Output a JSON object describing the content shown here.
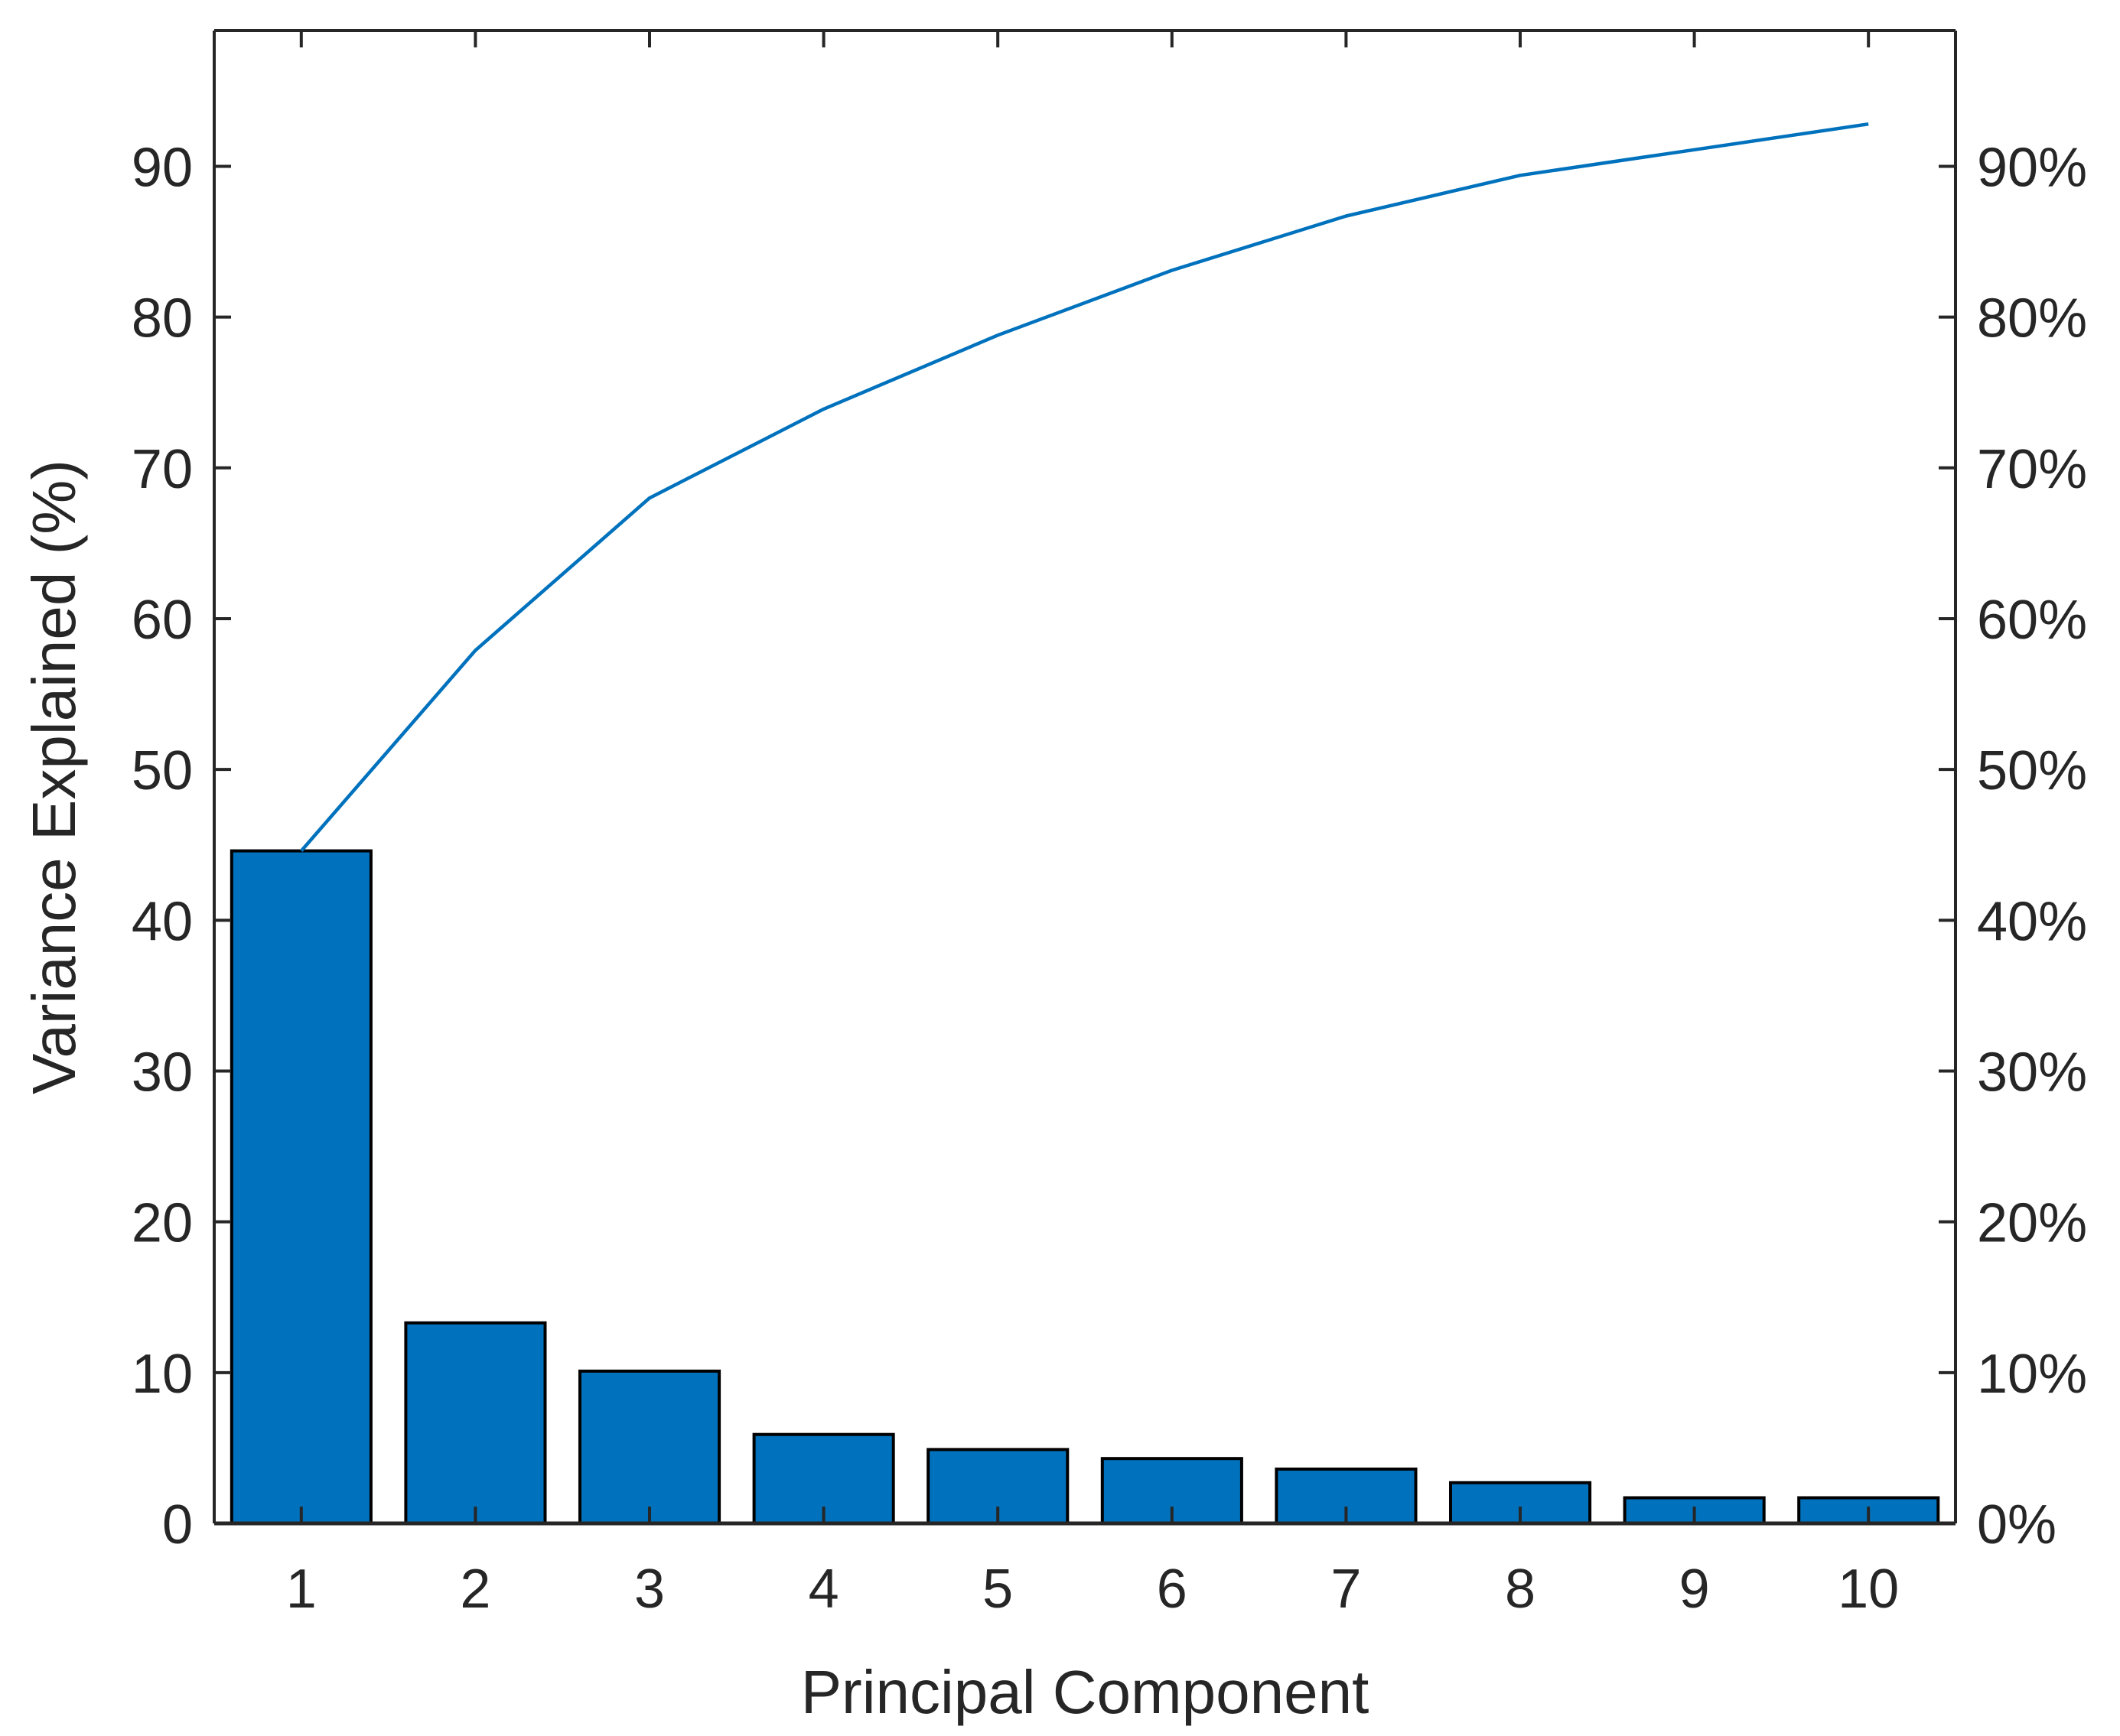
{
  "chart_data": {
    "type": "bar",
    "title": "",
    "xlabel": "Principal Component",
    "ylabel": "Variance Explained (%)",
    "categories": [
      "1",
      "2",
      "3",
      "4",
      "5",
      "6",
      "7",
      "8",
      "9",
      "10"
    ],
    "series": [
      {
        "kind": "bar",
        "axis": "left",
        "values": [
          44.6,
          13.3,
          10.1,
          5.9,
          4.9,
          4.3,
          3.6,
          2.7,
          1.7,
          1.7
        ],
        "color": "#0072BD"
      },
      {
        "kind": "line",
        "axis": "right",
        "values": [
          44.6,
          57.9,
          68.0,
          73.9,
          78.8,
          83.1,
          86.7,
          89.4,
          91.1,
          92.8
        ],
        "color": "#0072BD"
      }
    ],
    "ylim": [
      0,
      99
    ],
    "yticks": [
      0,
      10,
      20,
      30,
      40,
      50,
      60,
      70,
      80,
      90
    ],
    "ytick_labels": [
      "0",
      "10",
      "20",
      "30",
      "40",
      "50",
      "60",
      "70",
      "80",
      "90"
    ],
    "y2lim": [
      0,
      99
    ],
    "y2ticks": [
      0,
      10,
      20,
      30,
      40,
      50,
      60,
      70,
      80,
      90
    ],
    "y2tick_labels": [
      "0%",
      "10%",
      "20%",
      "30%",
      "40%",
      "50%",
      "60%",
      "70%",
      "80%",
      "90%"
    ],
    "grid": false,
    "colors": {
      "bar_fill": "#0072BD",
      "bar_edge": "#000000",
      "line": "#0072BD",
      "axis": "#262626",
      "text": "#262626"
    }
  }
}
